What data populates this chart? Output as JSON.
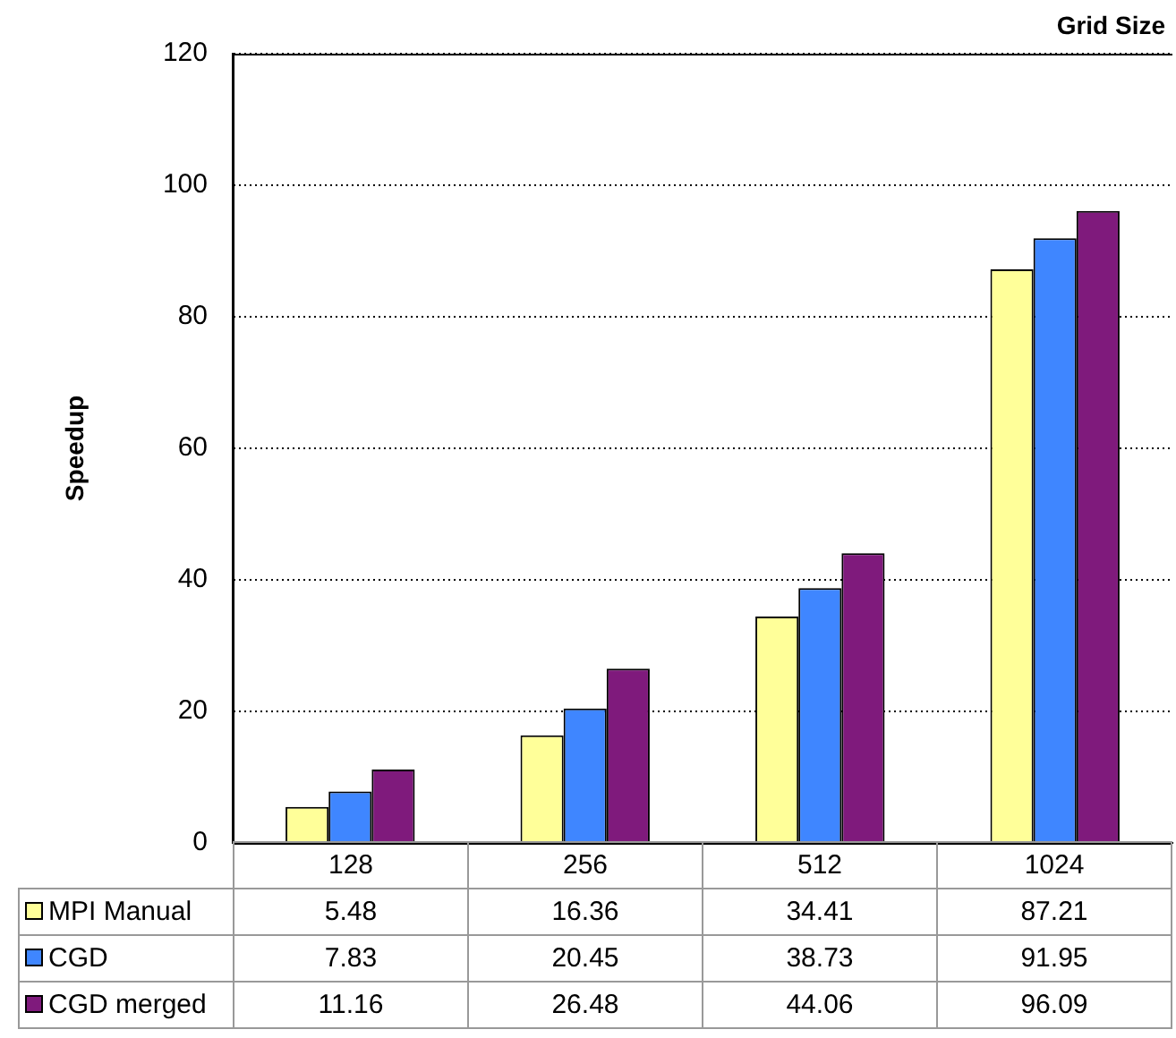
{
  "chart_data": {
    "type": "bar",
    "xlabel": "Grid Size",
    "ylabel": "Speedup",
    "categories": [
      "128",
      "256",
      "512",
      "1024"
    ],
    "series": [
      {
        "name": "MPI Manual",
        "color": "#ffff99",
        "values": [
          5.48,
          16.36,
          34.41,
          87.21
        ]
      },
      {
        "name": "CGD",
        "color": "#3f86ff",
        "values": [
          7.83,
          20.45,
          38.73,
          91.95
        ]
      },
      {
        "name": "CGD merged",
        "color": "#7f1a7c",
        "values": [
          11.16,
          26.48,
          44.06,
          96.09
        ]
      }
    ],
    "ylim": [
      0,
      120
    ],
    "yticks": [
      0,
      20,
      40,
      60,
      80,
      100,
      120
    ],
    "grid": "y",
    "legend": "bottom left",
    "data_labels": true
  }
}
